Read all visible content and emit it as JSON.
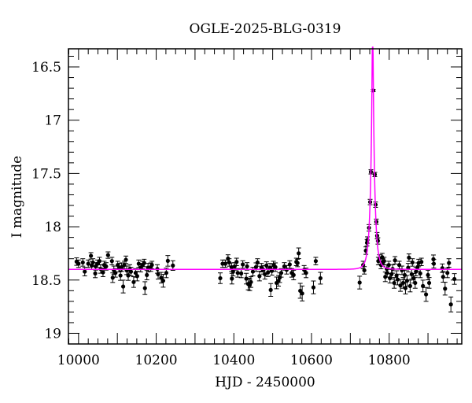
{
  "chart_data": {
    "type": "scatter",
    "title": "OGLE-2025-BLG-0319",
    "xlabel": "HJD - 2450000",
    "ylabel": "I magnitude",
    "xlim": [
      9974,
      10987
    ],
    "ylim": [
      19.1,
      16.33
    ],
    "y_inverted": true,
    "grid": false,
    "x_ticks": [
      10000,
      10200,
      10400,
      10600,
      10800
    ],
    "x_tick_labels": [
      "10000",
      "10200",
      "10400",
      "10600",
      "10800"
    ],
    "y_ticks": [
      16.5,
      17,
      17.5,
      18,
      18.5,
      19
    ],
    "y_tick_labels": [
      "16.5",
      "17",
      "17.5",
      "18",
      "18.5",
      "19"
    ],
    "colors": {
      "points": "#000000",
      "errorbars": "#000000",
      "model": "#ff00ff"
    },
    "model": {
      "type": "point-lens",
      "baseline_mag": 18.4,
      "t0": 10757.5,
      "tE": 10.5,
      "u0": 0.12
    },
    "points": [
      [
        9995,
        18.327,
        0.035
      ],
      [
        10000,
        18.347,
        0.035
      ],
      [
        10011,
        18.335,
        0.035
      ],
      [
        10016,
        18.421,
        0.04
      ],
      [
        10025,
        18.347,
        0.035
      ],
      [
        10032,
        18.273,
        0.03
      ],
      [
        10034,
        18.364,
        0.035
      ],
      [
        10037,
        18.335,
        0.035
      ],
      [
        10043,
        18.438,
        0.04
      ],
      [
        10044,
        18.372,
        0.035
      ],
      [
        10049,
        18.347,
        0.035
      ],
      [
        10054,
        18.322,
        0.035
      ],
      [
        10057,
        18.396,
        0.04
      ],
      [
        10063,
        18.428,
        0.04
      ],
      [
        10066,
        18.359,
        0.035
      ],
      [
        10071,
        18.372,
        0.035
      ],
      [
        10076,
        18.266,
        0.03
      ],
      [
        10086,
        18.322,
        0.035
      ],
      [
        10088,
        18.478,
        0.045
      ],
      [
        10091,
        18.409,
        0.04
      ],
      [
        10095,
        18.433,
        0.04
      ],
      [
        10101,
        18.359,
        0.035
      ],
      [
        10105,
        18.384,
        0.04
      ],
      [
        10108,
        18.458,
        0.045
      ],
      [
        10111,
        18.379,
        0.04
      ],
      [
        10115,
        18.561,
        0.06
      ],
      [
        10118,
        18.359,
        0.035
      ],
      [
        10122,
        18.31,
        0.035
      ],
      [
        10124,
        18.409,
        0.04
      ],
      [
        10128,
        18.458,
        0.045
      ],
      [
        10132,
        18.396,
        0.04
      ],
      [
        10135,
        18.421,
        0.04
      ],
      [
        10142,
        18.519,
        0.05
      ],
      [
        10147,
        18.433,
        0.04
      ],
      [
        10151,
        18.463,
        0.045
      ],
      [
        10155,
        18.347,
        0.035
      ],
      [
        10160,
        18.384,
        0.04
      ],
      [
        10165,
        18.359,
        0.035
      ],
      [
        10169,
        18.34,
        0.035
      ],
      [
        10171,
        18.576,
        0.06
      ],
      [
        10176,
        18.453,
        0.045
      ],
      [
        10179,
        18.384,
        0.04
      ],
      [
        10186,
        18.379,
        0.04
      ],
      [
        10189,
        18.359,
        0.035
      ],
      [
        10203,
        18.396,
        0.04
      ],
      [
        10205,
        18.446,
        0.045
      ],
      [
        10213,
        18.478,
        0.05
      ],
      [
        10218,
        18.507,
        0.06
      ],
      [
        10226,
        18.433,
        0.045
      ],
      [
        10230,
        18.32,
        0.05
      ],
      [
        10243,
        18.364,
        0.045
      ],
      [
        10365,
        18.483,
        0.05
      ],
      [
        10371,
        18.347,
        0.035
      ],
      [
        10378,
        18.347,
        0.035
      ],
      [
        10385,
        18.298,
        0.035
      ],
      [
        10388,
        18.335,
        0.035
      ],
      [
        10394,
        18.379,
        0.04
      ],
      [
        10395,
        18.487,
        0.05
      ],
      [
        10398,
        18.421,
        0.04
      ],
      [
        10402,
        18.372,
        0.035
      ],
      [
        10407,
        18.33,
        0.035
      ],
      [
        10410,
        18.433,
        0.04
      ],
      [
        10419,
        18.438,
        0.04
      ],
      [
        10423,
        18.354,
        0.035
      ],
      [
        10432,
        18.487,
        0.05
      ],
      [
        10434,
        18.372,
        0.035
      ],
      [
        10437,
        18.537,
        0.055
      ],
      [
        10441,
        18.544,
        0.055
      ],
      [
        10444,
        18.519,
        0.05
      ],
      [
        10449,
        18.421,
        0.04
      ],
      [
        10457,
        18.379,
        0.04
      ],
      [
        10461,
        18.335,
        0.035
      ],
      [
        10466,
        18.463,
        0.045
      ],
      [
        10471,
        18.384,
        0.04
      ],
      [
        10476,
        18.404,
        0.04
      ],
      [
        10480,
        18.446,
        0.045
      ],
      [
        10484,
        18.364,
        0.035
      ],
      [
        10488,
        18.428,
        0.04
      ],
      [
        10493,
        18.384,
        0.04
      ],
      [
        10495,
        18.593,
        0.06
      ],
      [
        10498,
        18.414,
        0.04
      ],
      [
        10502,
        18.359,
        0.035
      ],
      [
        10507,
        18.379,
        0.04
      ],
      [
        10510,
        18.527,
        0.055
      ],
      [
        10515,
        18.507,
        0.05
      ],
      [
        10518,
        18.478,
        0.045
      ],
      [
        10522,
        18.433,
        0.04
      ],
      [
        10530,
        18.372,
        0.035
      ],
      [
        10536,
        18.404,
        0.04
      ],
      [
        10544,
        18.354,
        0.035
      ],
      [
        10549,
        18.433,
        0.04
      ],
      [
        10554,
        18.453,
        0.045
      ],
      [
        10561,
        18.33,
        0.035
      ],
      [
        10564,
        18.34,
        0.035
      ],
      [
        10567,
        18.249,
        0.05
      ],
      [
        10571,
        18.601,
        0.07
      ],
      [
        10576,
        18.626,
        0.07
      ],
      [
        10581,
        18.404,
        0.04
      ],
      [
        10586,
        18.433,
        0.045
      ],
      [
        10605,
        18.569,
        0.06
      ],
      [
        10611,
        18.322,
        0.035
      ],
      [
        10623,
        18.483,
        0.055
      ],
      [
        10724,
        18.524,
        0.06
      ],
      [
        10733,
        18.359,
        0.035
      ],
      [
        10736,
        18.409,
        0.035
      ],
      [
        10740,
        18.224,
        0.035
      ],
      [
        10743,
        18.15,
        0.03
      ],
      [
        10744,
        18.125,
        0.03
      ],
      [
        10748,
        18.01,
        0.03
      ],
      [
        10751,
        17.768,
        0.025
      ],
      [
        10753,
        17.485,
        0.02
      ],
      [
        10759,
        16.721,
        0.01
      ],
      [
        10763,
        17.51,
        0.02
      ],
      [
        10765,
        17.793,
        0.025
      ],
      [
        10767,
        17.953,
        0.025
      ],
      [
        10769,
        18.084,
        0.03
      ],
      [
        10771,
        18.133,
        0.03
      ],
      [
        10772,
        18.322,
        0.035
      ],
      [
        10775,
        18.298,
        0.035
      ],
      [
        10779,
        18.359,
        0.035
      ],
      [
        10782,
        18.285,
        0.035
      ],
      [
        10784,
        18.335,
        0.035
      ],
      [
        10787,
        18.322,
        0.035
      ],
      [
        10790,
        18.47,
        0.045
      ],
      [
        10794,
        18.396,
        0.04
      ],
      [
        10795,
        18.433,
        0.04
      ],
      [
        10799,
        18.359,
        0.035
      ],
      [
        10802,
        18.483,
        0.045
      ],
      [
        10806,
        18.446,
        0.045
      ],
      [
        10809,
        18.396,
        0.04
      ],
      [
        10813,
        18.527,
        0.05
      ],
      [
        10815,
        18.315,
        0.035
      ],
      [
        10819,
        18.458,
        0.045
      ],
      [
        10822,
        18.495,
        0.05
      ],
      [
        10826,
        18.359,
        0.035
      ],
      [
        10829,
        18.551,
        0.055
      ],
      [
        10833,
        18.409,
        0.04
      ],
      [
        10836,
        18.527,
        0.05
      ],
      [
        10840,
        18.453,
        0.045
      ],
      [
        10842,
        18.576,
        0.055
      ],
      [
        10846,
        18.507,
        0.05
      ],
      [
        10849,
        18.384,
        0.04
      ],
      [
        10851,
        18.29,
        0.035
      ],
      [
        10854,
        18.556,
        0.055
      ],
      [
        10858,
        18.446,
        0.045
      ],
      [
        10860,
        18.335,
        0.035
      ],
      [
        10863,
        18.483,
        0.045
      ],
      [
        10867,
        18.527,
        0.05
      ],
      [
        10869,
        18.421,
        0.04
      ],
      [
        10873,
        18.379,
        0.04
      ],
      [
        10876,
        18.34,
        0.035
      ],
      [
        10880,
        18.438,
        0.04
      ],
      [
        10883,
        18.33,
        0.035
      ],
      [
        10887,
        18.556,
        0.055
      ],
      [
        10895,
        18.635,
        0.065
      ],
      [
        10900,
        18.453,
        0.045
      ],
      [
        10903,
        18.527,
        0.05
      ],
      [
        10914,
        18.305,
        0.04
      ],
      [
        10915,
        18.347,
        0.04
      ],
      [
        10937,
        18.389,
        0.04
      ],
      [
        10939,
        18.47,
        0.05
      ],
      [
        10944,
        18.581,
        0.06
      ],
      [
        10950,
        18.433,
        0.045
      ],
      [
        10954,
        18.34,
        0.04
      ],
      [
        10959,
        18.729,
        0.07
      ],
      [
        10968,
        18.49,
        0.05
      ]
    ]
  }
}
